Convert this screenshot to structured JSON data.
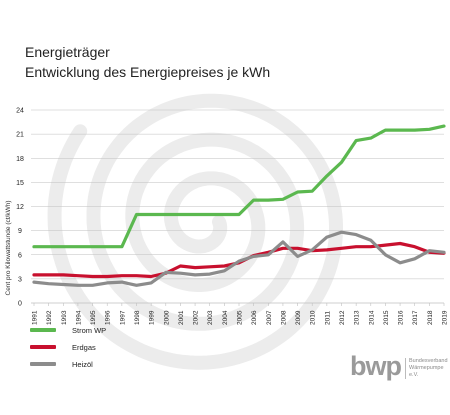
{
  "header": {
    "title": "Energieträger",
    "subtitle": "Entwicklung des Energiepreises je kWh"
  },
  "colors": {
    "strom": "#5bb84f",
    "erdgas": "#c8102e",
    "heizoel": "#8c8c8c",
    "grid": "#bfbfbf",
    "watermark": "#ececec"
  },
  "chart_data": {
    "type": "line",
    "x": [
      1991,
      1992,
      1993,
      1994,
      1995,
      1996,
      1997,
      1998,
      1999,
      2000,
      2001,
      2002,
      2003,
      2004,
      2005,
      2006,
      2007,
      2008,
      2009,
      2010,
      2011,
      2012,
      2013,
      2014,
      2015,
      2016,
      2017,
      2018,
      2019
    ],
    "x_tick_labels": [
      "1991",
      "1992",
      "1993",
      "1994",
      "1995",
      "1996",
      "1997",
      "1998",
      "1999",
      "2000",
      "2001",
      "2002",
      "2003",
      "2004",
      "2005",
      "2006",
      "2007",
      "2008",
      "2009",
      "2010",
      "2011",
      "2012",
      "2013",
      "2014",
      "2015",
      "2016",
      "2017",
      "2018",
      "2019"
    ],
    "ylabel": "Cent pro Kilowattstunde (ct/kWh)",
    "ylim": [
      0,
      24
    ],
    "y_ticks": [
      0,
      3,
      6,
      9,
      12,
      15,
      18,
      21,
      24
    ],
    "grid": true,
    "legend_position": "bottom-left",
    "series": [
      {
        "name": "Strom WP",
        "color_key": "strom",
        "points": [
          {
            "x": 1991,
            "y": 7.0
          },
          {
            "x": 1992,
            "y": 7.0
          },
          {
            "x": 1993,
            "y": 7.0
          },
          {
            "x": 1994,
            "y": 7.0
          },
          {
            "x": 1995,
            "y": 7.0
          },
          {
            "x": 1996,
            "y": 7.0
          },
          {
            "x": 1997,
            "y": 7.0
          },
          {
            "x": 1998,
            "y": 11.0
          },
          {
            "x": 1999,
            "y": 11.0
          },
          {
            "x": 2000,
            "y": 11.0
          },
          {
            "x": 2001,
            "y": 11.0
          },
          {
            "x": 2002,
            "y": 11.0
          },
          {
            "x": 2003,
            "y": 11.0
          },
          {
            "x": 2004,
            "y": 11.0
          },
          {
            "x": 2005,
            "y": 11.0
          },
          {
            "x": 2006,
            "y": 12.8
          },
          {
            "x": 2007,
            "y": 12.8
          },
          {
            "x": 2008,
            "y": 12.9
          },
          {
            "x": 2009,
            "y": 13.8
          },
          {
            "x": 2010,
            "y": 13.9
          },
          {
            "x": 2011,
            "y": 15.8
          },
          {
            "x": 2012,
            "y": 17.5
          },
          {
            "x": 2013,
            "y": 20.2
          },
          {
            "x": 2014,
            "y": 20.5
          },
          {
            "x": 2015,
            "y": 21.5
          },
          {
            "x": 2016,
            "y": 21.5
          },
          {
            "x": 2017,
            "y": 21.5
          },
          {
            "x": 2018,
            "y": 21.6
          },
          {
            "x": 2019,
            "y": 22.0
          }
        ]
      },
      {
        "name": "Erdgas",
        "color_key": "erdgas",
        "points": [
          {
            "x": 1991,
            "y": 3.5
          },
          {
            "x": 1992,
            "y": 3.5
          },
          {
            "x": 1993,
            "y": 3.5
          },
          {
            "x": 1994,
            "y": 3.4
          },
          {
            "x": 1995,
            "y": 3.3
          },
          {
            "x": 1996,
            "y": 3.3
          },
          {
            "x": 1997,
            "y": 3.4
          },
          {
            "x": 1998,
            "y": 3.4
          },
          {
            "x": 1999,
            "y": 3.3
          },
          {
            "x": 2000,
            "y": 3.7
          },
          {
            "x": 2001,
            "y": 4.6
          },
          {
            "x": 2002,
            "y": 4.4
          },
          {
            "x": 2003,
            "y": 4.5
          },
          {
            "x": 2004,
            "y": 4.6
          },
          {
            "x": 2005,
            "y": 5.0
          },
          {
            "x": 2006,
            "y": 5.9
          },
          {
            "x": 2007,
            "y": 6.3
          },
          {
            "x": 2008,
            "y": 6.8
          },
          {
            "x": 2009,
            "y": 6.8
          },
          {
            "x": 2010,
            "y": 6.5
          },
          {
            "x": 2011,
            "y": 6.6
          },
          {
            "x": 2012,
            "y": 6.8
          },
          {
            "x": 2013,
            "y": 7.0
          },
          {
            "x": 2014,
            "y": 7.0
          },
          {
            "x": 2015,
            "y": 7.2
          },
          {
            "x": 2016,
            "y": 7.4
          },
          {
            "x": 2017,
            "y": 7.0
          },
          {
            "x": 2018,
            "y": 6.3
          },
          {
            "x": 2019,
            "y": 6.2
          }
        ]
      },
      {
        "name": "Heizöl",
        "color_key": "heizoel",
        "points": [
          {
            "x": 1991,
            "y": 2.6
          },
          {
            "x": 1992,
            "y": 2.4
          },
          {
            "x": 1993,
            "y": 2.3
          },
          {
            "x": 1994,
            "y": 2.2
          },
          {
            "x": 1995,
            "y": 2.2
          },
          {
            "x": 1996,
            "y": 2.5
          },
          {
            "x": 1997,
            "y": 2.6
          },
          {
            "x": 1998,
            "y": 2.2
          },
          {
            "x": 1999,
            "y": 2.5
          },
          {
            "x": 2000,
            "y": 3.8
          },
          {
            "x": 2001,
            "y": 3.7
          },
          {
            "x": 2002,
            "y": 3.5
          },
          {
            "x": 2003,
            "y": 3.6
          },
          {
            "x": 2004,
            "y": 4.0
          },
          {
            "x": 2005,
            "y": 5.2
          },
          {
            "x": 2006,
            "y": 5.8
          },
          {
            "x": 2007,
            "y": 6.0
          },
          {
            "x": 2008,
            "y": 7.6
          },
          {
            "x": 2009,
            "y": 5.8
          },
          {
            "x": 2010,
            "y": 6.6
          },
          {
            "x": 2011,
            "y": 8.2
          },
          {
            "x": 2012,
            "y": 8.8
          },
          {
            "x": 2013,
            "y": 8.5
          },
          {
            "x": 2014,
            "y": 7.8
          },
          {
            "x": 2015,
            "y": 6.0
          },
          {
            "x": 2016,
            "y": 5.0
          },
          {
            "x": 2017,
            "y": 5.5
          },
          {
            "x": 2018,
            "y": 6.5
          },
          {
            "x": 2019,
            "y": 6.3
          }
        ]
      }
    ]
  },
  "legend": {
    "items": [
      {
        "label": "Strom WP",
        "color_key": "strom"
      },
      {
        "label": "Erdgas",
        "color_key": "erdgas"
      },
      {
        "label": "Heizöl",
        "color_key": "heizoel"
      }
    ]
  },
  "brand": {
    "mark": "bwp",
    "line1": "Bundesverband",
    "line2": "Wärmepumpe e.V."
  }
}
